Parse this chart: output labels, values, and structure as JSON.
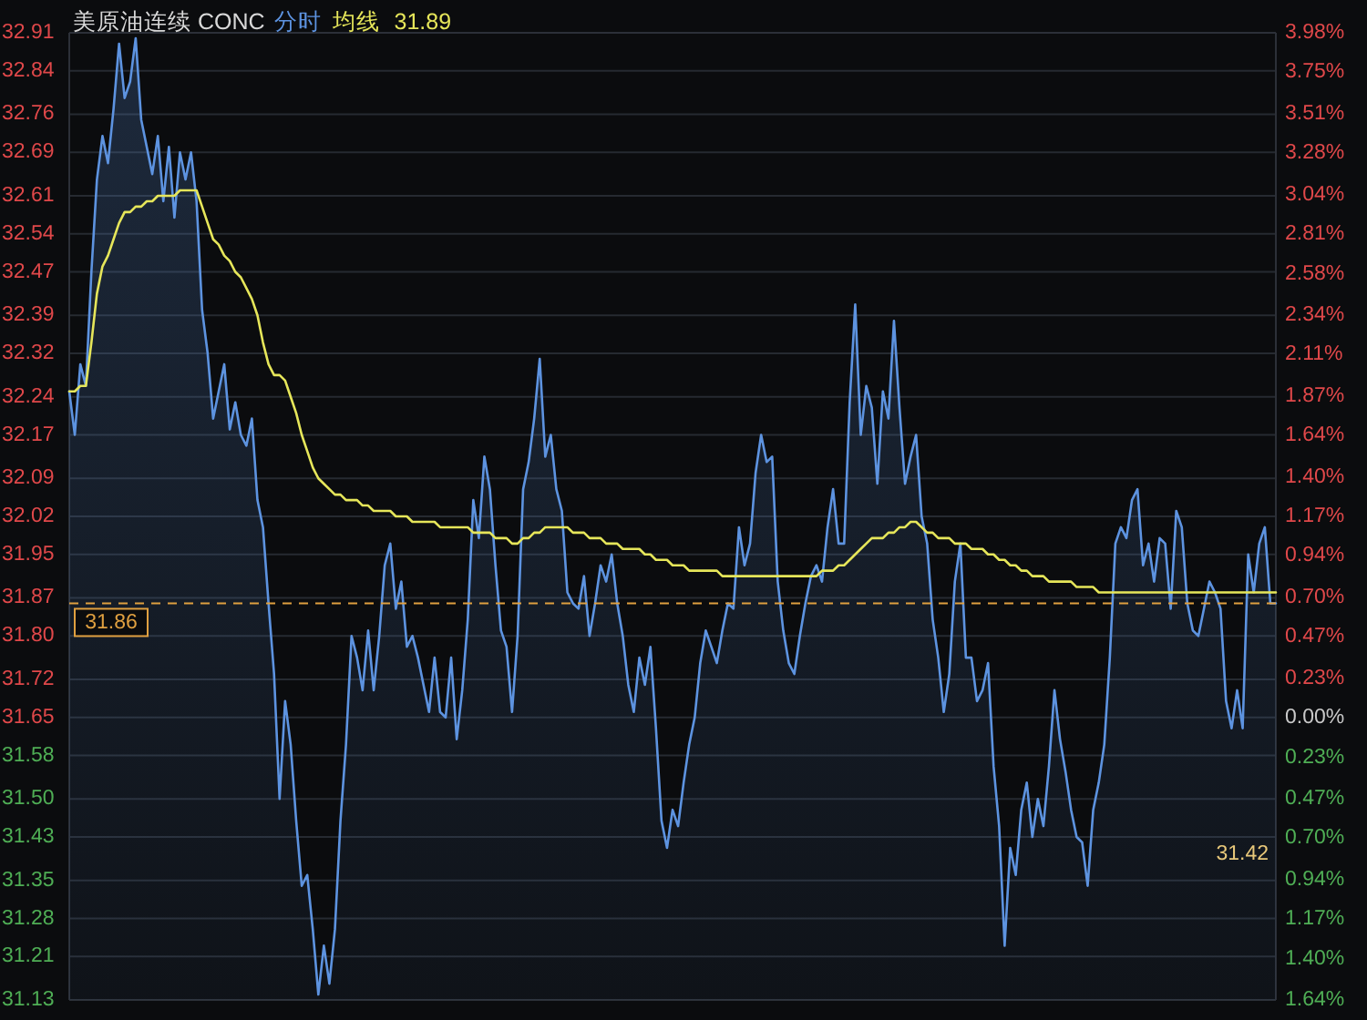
{
  "chart_data": {
    "type": "area",
    "title": "美原油连续 CONC",
    "subtitle": "分时",
    "legend": "top left",
    "grid": "y",
    "categories": [
      null,
      null,
      null,
      null,
      null,
      null,
      null,
      null,
      null,
      null,
      null,
      null,
      null,
      null,
      null,
      null,
      null,
      null,
      null,
      null,
      null,
      null,
      null,
      null,
      null,
      null,
      null,
      null,
      null,
      null,
      null,
      null,
      null,
      null,
      null,
      null,
      null,
      null,
      null,
      null,
      null,
      null,
      null,
      null,
      null,
      null,
      null,
      null,
      null,
      null,
      null,
      null,
      null,
      null,
      null,
      null,
      null,
      null,
      null,
      null,
      null,
      null,
      null,
      null,
      null,
      null,
      null,
      null,
      null,
      null,
      null,
      null,
      null,
      null,
      null,
      null,
      null,
      null,
      null,
      null,
      null,
      null,
      null,
      null,
      null,
      null,
      null,
      null,
      null,
      null,
      null,
      null,
      null,
      null,
      null,
      null,
      null,
      null,
      null,
      null,
      null,
      null,
      null,
      null,
      null,
      null,
      null,
      null,
      null,
      null,
      null,
      null,
      null,
      null,
      null,
      null,
      null,
      null,
      null,
      null,
      null,
      null,
      null,
      null,
      null,
      null,
      null,
      null,
      null,
      null,
      null,
      null,
      null,
      null,
      null,
      null,
      null,
      null,
      null,
      null,
      null,
      null,
      null,
      null,
      null,
      null,
      null,
      null,
      null,
      null,
      null,
      null,
      null,
      null,
      null,
      null,
      null,
      null,
      null,
      null,
      null,
      null,
      null,
      null,
      null,
      null,
      null,
      null,
      null,
      null,
      null,
      null,
      null,
      null,
      null,
      null,
      null,
      null,
      null,
      null,
      null,
      null,
      null,
      null,
      null,
      null,
      null,
      null,
      null,
      null,
      null,
      null,
      null,
      null,
      null,
      null,
      null,
      null,
      null,
      null,
      null,
      null,
      null,
      null,
      null,
      null,
      null,
      null,
      null,
      null,
      null,
      null,
      null,
      null,
      null,
      null,
      null,
      null,
      null
    ],
    "ylim": [
      31.13,
      32.91
    ],
    "yticks": [
      31.13,
      31.21,
      31.28,
      31.35,
      31.43,
      {
        "value": 31.5,
        "label": "31.50"
      },
      31.58,
      31.65,
      31.72,
      {
        "value": 31.8,
        "label": "31.80"
      },
      31.87,
      31.95,
      32.02,
      32.09,
      32.17,
      32.24,
      32.32,
      32.39,
      32.47,
      32.54,
      32.61,
      32.69,
      32.76,
      32.84,
      32.91
    ],
    "y2lim": [
      -1.64,
      3.98
    ],
    "y2ticks": [
      {
        "value": -1.64,
        "label": "1.64%"
      },
      {
        "value": -1.4,
        "label": "1.40%"
      },
      {
        "value": -1.17,
        "label": "1.17%"
      },
      {
        "value": -0.94,
        "label": "0.94%"
      },
      {
        "value": -0.7,
        "label": "0.70%"
      },
      {
        "value": -0.47,
        "label": "0.47%"
      },
      {
        "value": -0.23,
        "label": "0.23%"
      },
      {
        "value": 0,
        "label": "0.00%"
      },
      {
        "value": 0.23,
        "label": "0.23%"
      },
      {
        "value": 0.47,
        "label": "0.47%"
      },
      {
        "value": 0.7,
        "label": "0.70%"
      },
      {
        "value": 0.94,
        "label": "0.94%"
      },
      {
        "value": 1.17,
        "label": "1.17%"
      },
      {
        "value": 1.4,
        "label": "1.40%"
      },
      {
        "value": 1.64,
        "label": "1.64%"
      },
      {
        "value": 1.87,
        "label": "1.87%"
      },
      {
        "value": 2.11,
        "label": "2.11%"
      },
      {
        "value": 2.34,
        "label": "2.34%"
      },
      {
        "value": 2.58,
        "label": "2.58%"
      },
      {
        "value": 2.81,
        "label": "2.81%"
      },
      {
        "value": 3.04,
        "label": "3.04%"
      },
      {
        "value": 3.28,
        "label": "3.28%"
      },
      {
        "value": 3.51,
        "label": "3.51%"
      },
      {
        "value": 3.75,
        "label": "3.75%"
      },
      {
        "value": 3.98,
        "label": "3.98%"
      }
    ],
    "series": [
      {
        "type": "area",
        "color": "#5d93e0",
        "values": [
          32.25,
          32.17,
          32.3,
          32.26,
          32.47,
          32.64,
          32.72,
          32.67,
          32.77,
          32.89,
          32.79,
          32.82,
          32.9,
          32.75,
          32.7,
          32.65,
          32.72,
          32.6,
          32.7,
          32.57,
          32.69,
          32.64,
          32.69,
          32.6,
          32.4,
          32.32,
          32.2,
          32.25,
          32.3,
          32.18,
          32.23,
          32.17,
          32.15,
          32.2,
          32.05,
          32.0,
          31.86,
          31.73,
          31.5,
          31.68,
          31.6,
          31.46,
          31.34,
          31.36,
          31.26,
          31.14,
          31.23,
          31.16,
          31.26,
          31.46,
          31.6,
          31.8,
          31.76,
          31.7,
          31.81,
          31.7,
          31.8,
          31.93,
          31.97,
          31.85,
          31.9,
          31.78,
          31.8,
          31.76,
          31.71,
          31.66,
          31.76,
          31.66,
          31.65,
          31.76,
          31.61,
          31.7,
          31.83,
          32.05,
          31.98,
          32.13,
          32.07,
          31.93,
          31.81,
          31.78,
          31.66,
          31.8,
          32.07,
          32.12,
          32.2,
          32.31,
          32.13,
          32.17,
          32.07,
          32.03,
          31.88,
          31.86,
          31.85,
          31.91,
          31.8,
          31.86,
          31.93,
          31.9,
          31.95,
          31.86,
          31.8,
          31.71,
          31.66,
          31.76,
          31.71,
          31.78,
          31.63,
          31.46,
          31.41,
          31.48,
          31.45,
          31.53,
          31.6,
          31.65,
          31.75,
          31.81,
          31.78,
          31.75,
          31.81,
          31.86,
          31.85,
          32.0,
          31.93,
          31.97,
          32.1,
          32.17,
          32.12,
          32.13,
          31.9,
          31.81,
          31.75,
          31.73,
          31.8,
          31.86,
          31.91,
          31.93,
          31.9,
          32.0,
          32.07,
          31.97,
          31.97,
          32.23,
          32.41,
          32.17,
          32.26,
          32.22,
          32.08,
          32.25,
          32.2,
          32.38,
          32.22,
          32.08,
          32.13,
          32.17,
          32.02,
          31.97,
          31.83,
          31.76,
          31.66,
          31.73,
          31.9,
          31.97,
          31.76,
          31.76,
          31.68,
          31.7,
          31.75,
          31.56,
          31.45,
          31.23,
          31.41,
          31.36,
          31.48,
          31.53,
          31.43,
          31.5,
          31.45,
          31.56,
          31.7,
          31.61,
          31.55,
          31.48,
          31.43,
          31.42,
          31.34,
          31.48,
          31.53,
          31.6,
          31.76,
          31.97,
          32.0,
          31.98,
          32.05,
          32.07,
          31.93,
          31.97,
          31.9,
          31.98,
          31.97,
          31.85,
          32.03,
          32.0,
          31.86,
          31.81,
          31.8,
          31.85,
          31.9,
          31.88,
          31.85,
          31.68,
          31.63,
          31.7,
          31.63,
          31.95,
          31.88,
          31.97,
          32.0,
          31.86,
          31.86
        ]
      },
      {
        "type": "line",
        "name": "均线",
        "color": "#e6e65a",
        "values": [
          32.25,
          32.25,
          32.26,
          32.26,
          32.34,
          32.43,
          32.48,
          32.5,
          32.53,
          32.56,
          32.58,
          32.58,
          32.59,
          32.59,
          32.6,
          32.6,
          32.61,
          32.61,
          32.61,
          32.61,
          32.62,
          32.62,
          32.62,
          32.62,
          32.59,
          32.56,
          32.53,
          32.52,
          32.5,
          32.49,
          32.47,
          32.46,
          32.44,
          32.42,
          32.39,
          32.34,
          32.3,
          32.28,
          32.28,
          32.27,
          32.24,
          32.21,
          32.17,
          32.14,
          32.11,
          32.09,
          32.08,
          32.07,
          32.06,
          32.06,
          32.05,
          32.05,
          32.05,
          32.04,
          32.04,
          32.03,
          32.03,
          32.03,
          32.03,
          32.02,
          32.02,
          32.02,
          32.01,
          32.01,
          32.01,
          32.01,
          32.01,
          32.0,
          32.0,
          32.0,
          32.0,
          32.0,
          32.0,
          31.99,
          31.99,
          31.99,
          31.99,
          31.98,
          31.98,
          31.98,
          31.97,
          31.97,
          31.98,
          31.98,
          31.99,
          31.99,
          32.0,
          32.0,
          32.0,
          32.0,
          32.0,
          31.99,
          31.99,
          31.99,
          31.98,
          31.98,
          31.98,
          31.97,
          31.97,
          31.97,
          31.96,
          31.96,
          31.96,
          31.96,
          31.95,
          31.95,
          31.94,
          31.94,
          31.94,
          31.93,
          31.93,
          31.93,
          31.92,
          31.92,
          31.92,
          31.92,
          31.92,
          31.92,
          31.91,
          31.91,
          31.91,
          31.91,
          31.91,
          31.91,
          31.91,
          31.91,
          31.91,
          31.91,
          31.91,
          31.91,
          31.91,
          31.91,
          31.91,
          31.91,
          31.91,
          31.91,
          31.92,
          31.92,
          31.92,
          31.93,
          31.93,
          31.94,
          31.95,
          31.96,
          31.97,
          31.98,
          31.98,
          31.98,
          31.99,
          31.99,
          32.0,
          32.0,
          32.01,
          32.01,
          32.0,
          31.99,
          31.99,
          31.98,
          31.98,
          31.98,
          31.97,
          31.97,
          31.97,
          31.96,
          31.96,
          31.96,
          31.95,
          31.95,
          31.94,
          31.94,
          31.93,
          31.93,
          31.92,
          31.92,
          31.91,
          31.91,
          31.91,
          31.9,
          31.9,
          31.9,
          31.9,
          31.9,
          31.89,
          31.89,
          31.89,
          31.89,
          31.88,
          31.88,
          31.88,
          31.88,
          31.88,
          31.88,
          31.88,
          31.88,
          31.88,
          31.88,
          31.88,
          31.88,
          31.88,
          31.88,
          31.88,
          31.88,
          31.88,
          31.88,
          31.88,
          31.88,
          31.88,
          31.88,
          31.88,
          31.88,
          31.88,
          31.88,
          31.88,
          31.88,
          31.88,
          31.88,
          31.88,
          31.88,
          31.88
        ]
      }
    ],
    "ref_lines": [
      {
        "axis": "y",
        "value": 31.86,
        "label": "31.86",
        "color": "#e0a040",
        "line_style": "dashed"
      }
    ],
    "annotations": [
      "31.89",
      "31.42"
    ]
  }
}
